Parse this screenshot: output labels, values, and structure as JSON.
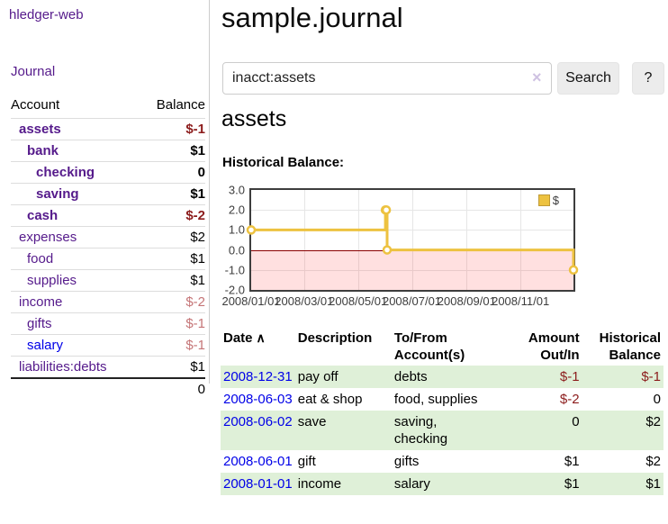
{
  "app": {
    "brand": "hledger-web",
    "nav_journal": "Journal"
  },
  "colors": {
    "link_purple": "#551a8b",
    "link_blue": "#0000e8",
    "negative_strong": "#8c1c1c",
    "negative_soft": "#c57577",
    "row_green": "#dff0d8",
    "series_gold": "#edc240"
  },
  "sidebar": {
    "header": {
      "account": "Account",
      "balance": "Balance"
    },
    "accounts": [
      {
        "name": "assets",
        "balance": "$-1",
        "indent": 1,
        "bold": true
      },
      {
        "name": "bank",
        "balance": "$1",
        "indent": 2,
        "bold": true
      },
      {
        "name": "checking",
        "balance": "0",
        "indent": 3,
        "bold": true
      },
      {
        "name": "saving",
        "balance": "$1",
        "indent": 3,
        "bold": true
      },
      {
        "name": "cash",
        "balance": "$-2",
        "indent": 2,
        "bold": true
      },
      {
        "name": "expenses",
        "balance": "$2",
        "indent": 1,
        "bold": false
      },
      {
        "name": "food",
        "balance": "$1",
        "indent": 2,
        "bold": false
      },
      {
        "name": "supplies",
        "balance": "$1",
        "indent": 2,
        "bold": false
      },
      {
        "name": "income",
        "balance": "$-2",
        "indent": 1,
        "bold": false
      },
      {
        "name": "gifts",
        "balance": "$-1",
        "indent": 2,
        "bold": false
      },
      {
        "name": "salary",
        "balance": "$-1",
        "indent": 2,
        "bold": false,
        "link_blue": true
      },
      {
        "name": "liabilities:debts",
        "balance": "$1",
        "indent": 1,
        "bold": false
      }
    ],
    "total": "0"
  },
  "header": {
    "title": "sample.journal"
  },
  "search": {
    "value": "inacct:assets",
    "clear_icon": "×",
    "button": "Search",
    "help": "?"
  },
  "main": {
    "heading": "assets"
  },
  "chart_data": {
    "type": "line",
    "step": true,
    "title": "Historical Balance:",
    "series": [
      {
        "name": "$",
        "color": "#edc240",
        "points": [
          [
            "2008-01-01",
            1
          ],
          [
            "2008-06-01",
            2
          ],
          [
            "2008-06-02",
            2
          ],
          [
            "2008-06-03",
            0
          ],
          [
            "2008-12-31",
            -1
          ]
        ]
      }
    ],
    "ylim": [
      -2,
      3
    ],
    "yticks": [
      3,
      2,
      1,
      0,
      -1,
      -2
    ],
    "ytick_labels": [
      "3.0",
      "2.0",
      "1.0",
      "0.0",
      "-1.0",
      "-2.0"
    ],
    "xrange": [
      "2008-01-01",
      "2008-12-31"
    ],
    "xticks": [
      {
        "date": "2008-01-01",
        "label": "2008/01/01"
      },
      {
        "date": "2008-03-01",
        "label": "2008/03/01"
      },
      {
        "date": "2008-05-01",
        "label": "2008/05/01"
      },
      {
        "date": "2008-07-01",
        "label": "2008/07/01"
      },
      {
        "date": "2008-09-01",
        "label": "2008/09/01"
      },
      {
        "date": "2008-11-01",
        "label": "2008/11/01"
      }
    ],
    "grid": true,
    "legend": {
      "position": "top-right",
      "label": "$"
    },
    "negative_region_color": "rgba(255,0,0,0.12)",
    "zero_line_color": "#8b0000"
  },
  "register": {
    "sort_icon": "∧",
    "headers": [
      {
        "label": "Date",
        "sort": true,
        "align": "left"
      },
      {
        "label": "Description",
        "align": "left"
      },
      {
        "label": "To/From Account(s)",
        "align": "left"
      },
      {
        "label": "Amount Out/In",
        "align": "right"
      },
      {
        "label": "Historical Balance",
        "align": "right"
      }
    ],
    "rows": [
      {
        "date": "2008-12-31",
        "description": "pay off",
        "accounts": "debts",
        "amount": "$-1",
        "balance": "$-1"
      },
      {
        "date": "2008-06-03",
        "description": "eat & shop",
        "accounts": "food, supplies",
        "amount": "$-2",
        "balance": "0"
      },
      {
        "date": "2008-06-02",
        "description": "save",
        "accounts": "saving, checking",
        "amount": "0",
        "balance": "$2"
      },
      {
        "date": "2008-06-01",
        "description": "gift",
        "accounts": "gifts",
        "amount": "$1",
        "balance": "$2"
      },
      {
        "date": "2008-01-01",
        "description": "income",
        "accounts": "salary",
        "amount": "$1",
        "balance": "$1"
      }
    ]
  }
}
